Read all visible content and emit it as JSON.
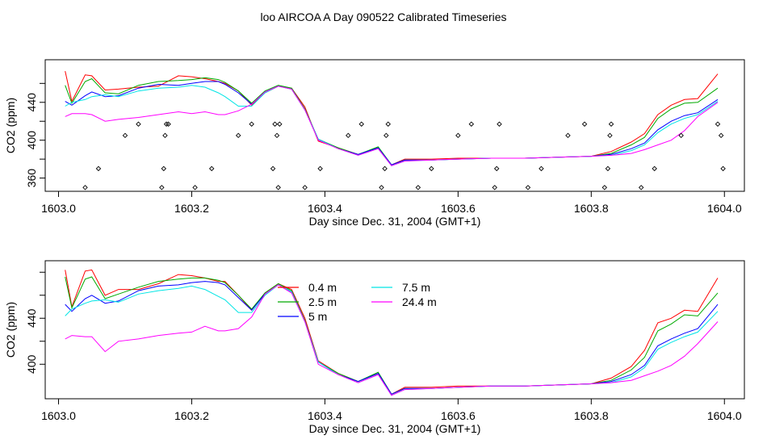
{
  "page_title": "loo AIRCOA A  Day 090522  Calibrated Timeseries",
  "chart_data": [
    {
      "type": "line",
      "xlabel": "Day since Dec. 31, 2004 (GMT+1)",
      "ylabel": "CO2 (ppm)",
      "xlim": [
        1602.98,
        1604.03
      ],
      "ylim": [
        346,
        485
      ],
      "xticks": [
        1603.0,
        1603.2,
        1603.4,
        1603.6,
        1603.8,
        1604.0
      ],
      "xtick_labels": [
        "1603.0",
        "1603.2",
        "1603.4",
        "1603.6",
        "1603.8",
        "1604.0"
      ],
      "yticks": [
        360,
        380,
        400,
        420,
        440,
        460
      ],
      "ytick_labels": [
        "360",
        "",
        "400",
        "",
        "440",
        ""
      ],
      "grid": false,
      "legend": "none",
      "series": [
        {
          "color": "#ff0000",
          "x": [
            1603.01,
            1603.02,
            1603.04,
            1603.05,
            1603.07,
            1603.09,
            1603.12,
            1603.15,
            1603.18,
            1603.2,
            1603.22,
            1603.24,
            1603.25,
            1603.27,
            1603.29,
            1603.31,
            1603.33,
            1603.35,
            1603.37,
            1603.39,
            1603.42,
            1603.45,
            1603.48,
            1603.5,
            1603.52,
            1603.56,
            1603.6,
            1603.65,
            1603.7,
            1603.75,
            1603.8,
            1603.83,
            1603.86,
            1603.88,
            1603.9,
            1603.92,
            1603.94,
            1603.96,
            1603.99
          ],
          "y": [
            473,
            441,
            469,
            468,
            453,
            454,
            456,
            457,
            468,
            467,
            465,
            462,
            460,
            452,
            437,
            450,
            457,
            455,
            435,
            399,
            392,
            385,
            392,
            374,
            380,
            380,
            381,
            381,
            381,
            382,
            383,
            388,
            398,
            407,
            427,
            437,
            443,
            444,
            470
          ]
        },
        {
          "color": "#00aa00",
          "x": [
            1603.01,
            1603.02,
            1603.04,
            1603.05,
            1603.07,
            1603.09,
            1603.12,
            1603.15,
            1603.18,
            1603.2,
            1603.22,
            1603.24,
            1603.25,
            1603.27,
            1603.29,
            1603.31,
            1603.33,
            1603.35,
            1603.37,
            1603.39,
            1603.42,
            1603.45,
            1603.48,
            1603.5,
            1603.52,
            1603.56,
            1603.6,
            1603.65,
            1603.7,
            1603.75,
            1603.8,
            1603.83,
            1603.86,
            1603.88,
            1603.9,
            1603.92,
            1603.94,
            1603.96,
            1603.99
          ],
          "y": [
            458,
            439,
            462,
            465,
            450,
            449,
            458,
            462,
            463,
            464,
            466,
            464,
            461,
            452,
            439,
            452,
            458,
            455,
            433,
            401,
            392,
            385,
            393,
            374,
            379,
            379,
            380,
            381,
            381,
            382,
            383,
            386,
            395,
            403,
            423,
            433,
            439,
            440,
            455
          ]
        },
        {
          "color": "#0000ff",
          "x": [
            1603.01,
            1603.02,
            1603.04,
            1603.05,
            1603.07,
            1603.09,
            1603.12,
            1603.15,
            1603.18,
            1603.2,
            1603.22,
            1603.24,
            1603.25,
            1603.27,
            1603.29,
            1603.31,
            1603.33,
            1603.35,
            1603.37,
            1603.39,
            1603.42,
            1603.45,
            1603.48,
            1603.5,
            1603.52,
            1603.56,
            1603.6,
            1603.65,
            1603.7,
            1603.75,
            1603.8,
            1603.83,
            1603.86,
            1603.88,
            1603.9,
            1603.92,
            1603.94,
            1603.96,
            1603.99
          ],
          "y": [
            441,
            437,
            447,
            451,
            446,
            447,
            455,
            459,
            458,
            460,
            462,
            462,
            459,
            450,
            438,
            451,
            457,
            454,
            432,
            401,
            391,
            385,
            392,
            374,
            379,
            379,
            380,
            381,
            381,
            382,
            383,
            385,
            391,
            397,
            411,
            420,
            426,
            429,
            443
          ]
        },
        {
          "color": "#00e5e5",
          "x": [
            1603.01,
            1603.02,
            1603.04,
            1603.05,
            1603.07,
            1603.09,
            1603.12,
            1603.15,
            1603.18,
            1603.2,
            1603.22,
            1603.24,
            1603.25,
            1603.27,
            1603.29,
            1603.31,
            1603.33,
            1603.35,
            1603.37,
            1603.39,
            1603.42,
            1603.45,
            1603.48,
            1603.5,
            1603.52,
            1603.56,
            1603.6,
            1603.65,
            1603.7,
            1603.75,
            1603.8,
            1603.83,
            1603.86,
            1603.88,
            1603.9,
            1603.92,
            1603.94,
            1603.96,
            1603.99
          ],
          "y": [
            436,
            440,
            443,
            446,
            448,
            446,
            452,
            455,
            456,
            458,
            456,
            450,
            446,
            436,
            436,
            450,
            457,
            454,
            432,
            401,
            391,
            384,
            391,
            373,
            378,
            379,
            380,
            381,
            381,
            382,
            383,
            384,
            389,
            395,
            408,
            417,
            423,
            427,
            441
          ]
        },
        {
          "color": "#ff00ff",
          "x": [
            1603.01,
            1603.02,
            1603.04,
            1603.05,
            1603.07,
            1603.09,
            1603.12,
            1603.15,
            1603.18,
            1603.2,
            1603.22,
            1603.24,
            1603.25,
            1603.27,
            1603.29,
            1603.31,
            1603.33,
            1603.35,
            1603.37,
            1603.39,
            1603.42,
            1603.45,
            1603.48,
            1603.5,
            1603.52,
            1603.56,
            1603.6,
            1603.65,
            1603.7,
            1603.75,
            1603.8,
            1603.83,
            1603.86,
            1603.88,
            1603.9,
            1603.92,
            1603.94,
            1603.96,
            1603.99
          ],
          "y": [
            425,
            428,
            428,
            427,
            420,
            422,
            424,
            427,
            430,
            428,
            430,
            427,
            427,
            431,
            438,
            451,
            457,
            454,
            432,
            400,
            391,
            384,
            391,
            373,
            378,
            379,
            380,
            381,
            381,
            382,
            383,
            384,
            386,
            390,
            395,
            400,
            410,
            425,
            440
          ]
        }
      ],
      "flag_markers": {
        "x": [
          1603.04,
          1603.06,
          1603.1,
          1603.12,
          1603.155,
          1603.158,
          1603.16,
          1603.162,
          1603.165,
          1603.205,
          1603.23,
          1603.27,
          1603.29,
          1603.322,
          1603.325,
          1603.328,
          1603.33,
          1603.332,
          1603.37,
          1603.393,
          1603.435,
          1603.455,
          1603.485,
          1603.49,
          1603.492,
          1603.495,
          1603.54,
          1603.56,
          1603.6,
          1603.62,
          1603.655,
          1603.658,
          1603.662,
          1603.705,
          1603.725,
          1603.765,
          1603.79,
          1603.82,
          1603.825,
          1603.828,
          1603.83,
          1603.875,
          1603.895,
          1603.935,
          1603.99,
          1603.995,
          1603.998
        ],
        "y": [
          350,
          370,
          405,
          417,
          350,
          370,
          405,
          417,
          417,
          350,
          370,
          405,
          417,
          370,
          417,
          405,
          350,
          417,
          350,
          370,
          405,
          417,
          350,
          370,
          405,
          417,
          350,
          370,
          405,
          417,
          350,
          370,
          417,
          350,
          370,
          405,
          417,
          350,
          370,
          405,
          417,
          350,
          370,
          405,
          417,
          405,
          370
        ]
      }
    },
    {
      "type": "line",
      "xlabel": "Day since Dec. 31, 2004 (GMT+1)",
      "ylabel": "CO2 (ppm)",
      "xlim": [
        1602.98,
        1604.03
      ],
      "ylim": [
        370,
        490
      ],
      "xticks": [
        1603.0,
        1603.2,
        1603.4,
        1603.6,
        1603.8,
        1604.0
      ],
      "xtick_labels": [
        "1603.0",
        "1603.2",
        "1603.4",
        "1603.6",
        "1603.8",
        "1604.0"
      ],
      "yticks": [
        400,
        420,
        440,
        460,
        480
      ],
      "ytick_labels": [
        "400",
        "",
        "440",
        "",
        ""
      ],
      "grid": false,
      "legend": "upper-center",
      "series": [
        {
          "name": "0.4 m",
          "color": "#ff0000",
          "x": [
            1603.01,
            1603.02,
            1603.04,
            1603.05,
            1603.07,
            1603.09,
            1603.12,
            1603.15,
            1603.18,
            1603.2,
            1603.22,
            1603.24,
            1603.25,
            1603.27,
            1603.29,
            1603.31,
            1603.33,
            1603.35,
            1603.37,
            1603.39,
            1603.42,
            1603.45,
            1603.48,
            1603.5,
            1603.52,
            1603.56,
            1603.6,
            1603.65,
            1603.7,
            1603.75,
            1603.8,
            1603.83,
            1603.86,
            1603.88,
            1603.9,
            1603.92,
            1603.94,
            1603.96,
            1603.99
          ],
          "y": [
            482,
            450,
            481,
            482,
            460,
            465,
            465,
            470,
            478,
            477,
            475,
            472,
            472,
            460,
            447,
            462,
            470,
            465,
            440,
            403,
            392,
            385,
            392,
            374,
            380,
            380,
            381,
            381,
            381,
            382,
            383,
            388,
            398,
            412,
            436,
            440,
            447,
            446,
            475
          ]
        },
        {
          "name": "2.5 m",
          "color": "#00aa00",
          "x": [
            1603.01,
            1603.02,
            1603.04,
            1603.05,
            1603.07,
            1603.09,
            1603.12,
            1603.15,
            1603.18,
            1603.2,
            1603.22,
            1603.24,
            1603.25,
            1603.27,
            1603.29,
            1603.31,
            1603.33,
            1603.35,
            1603.37,
            1603.39,
            1603.42,
            1603.45,
            1603.48,
            1603.5,
            1603.52,
            1603.56,
            1603.6,
            1603.65,
            1603.7,
            1603.75,
            1603.8,
            1603.83,
            1603.86,
            1603.88,
            1603.9,
            1603.92,
            1603.94,
            1603.96,
            1603.99
          ],
          "y": [
            476,
            449,
            474,
            476,
            457,
            461,
            467,
            472,
            474,
            475,
            475,
            473,
            471,
            460,
            448,
            462,
            470,
            464,
            438,
            402,
            392,
            385,
            393,
            374,
            379,
            379,
            380,
            381,
            381,
            382,
            383,
            386,
            395,
            406,
            429,
            435,
            443,
            442,
            462
          ]
        },
        {
          "name": "5 m",
          "color": "#0000ff",
          "x": [
            1603.01,
            1603.02,
            1603.04,
            1603.05,
            1603.07,
            1603.09,
            1603.12,
            1603.15,
            1603.18,
            1603.2,
            1603.22,
            1603.24,
            1603.25,
            1603.27,
            1603.29,
            1603.31,
            1603.33,
            1603.35,
            1603.37,
            1603.39,
            1603.42,
            1603.45,
            1603.48,
            1603.5,
            1603.52,
            1603.56,
            1603.6,
            1603.65,
            1603.7,
            1603.75,
            1603.8,
            1603.83,
            1603.86,
            1603.88,
            1603.9,
            1603.92,
            1603.94,
            1603.96,
            1603.99
          ],
          "y": [
            452,
            446,
            457,
            460,
            453,
            455,
            464,
            468,
            469,
            471,
            472,
            471,
            469,
            458,
            447,
            461,
            469,
            463,
            437,
            402,
            391,
            385,
            392,
            374,
            379,
            379,
            380,
            381,
            381,
            382,
            383,
            385,
            391,
            399,
            416,
            422,
            427,
            431,
            452
          ]
        },
        {
          "name": "7.5 m",
          "color": "#00e5e5",
          "x": [
            1603.01,
            1603.02,
            1603.04,
            1603.05,
            1603.07,
            1603.09,
            1603.12,
            1603.15,
            1603.18,
            1603.2,
            1603.22,
            1603.24,
            1603.25,
            1603.27,
            1603.29,
            1603.31,
            1603.33,
            1603.35,
            1603.37,
            1603.39,
            1603.42,
            1603.45,
            1603.48,
            1603.5,
            1603.52,
            1603.56,
            1603.6,
            1603.65,
            1603.7,
            1603.75,
            1603.8,
            1603.83,
            1603.86,
            1603.88,
            1603.9,
            1603.92,
            1603.94,
            1603.96,
            1603.99
          ],
          "y": [
            442,
            448,
            453,
            455,
            456,
            454,
            461,
            464,
            466,
            468,
            465,
            459,
            456,
            445,
            445,
            460,
            469,
            463,
            437,
            402,
            391,
            384,
            391,
            373,
            378,
            379,
            380,
            381,
            381,
            382,
            383,
            384,
            389,
            397,
            413,
            419,
            424,
            428,
            446
          ]
        },
        {
          "name": "24.4 m",
          "color": "#ff00ff",
          "x": [
            1603.01,
            1603.02,
            1603.04,
            1603.05,
            1603.07,
            1603.09,
            1603.12,
            1603.15,
            1603.18,
            1603.2,
            1603.22,
            1603.24,
            1603.25,
            1603.27,
            1603.29,
            1603.31,
            1603.33,
            1603.35,
            1603.37,
            1603.39,
            1603.42,
            1603.45,
            1603.48,
            1603.5,
            1603.52,
            1603.56,
            1603.6,
            1603.65,
            1603.7,
            1603.75,
            1603.8,
            1603.83,
            1603.86,
            1603.88,
            1603.9,
            1603.92,
            1603.94,
            1603.96,
            1603.99
          ],
          "y": [
            422,
            425,
            424,
            424,
            411,
            420,
            422,
            425,
            427,
            428,
            433,
            429,
            429,
            431,
            441,
            461,
            469,
            462,
            437,
            400,
            391,
            384,
            391,
            373,
            378,
            379,
            380,
            381,
            381,
            382,
            383,
            384,
            386,
            390,
            394,
            399,
            407,
            418,
            437
          ]
        }
      ]
    }
  ]
}
